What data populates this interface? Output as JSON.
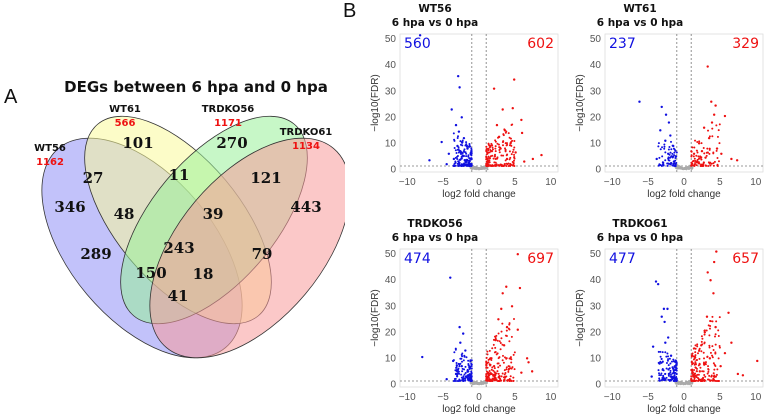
{
  "panel_labels": {
    "a": "A",
    "b": "B"
  },
  "colors": {
    "down": "#1010e0",
    "up": "#ee1111",
    "ns": "#aaaaaa",
    "set_count": "#ee1111"
  },
  "chart_data": [
    {
      "type": "venn",
      "title": "DEGs between 6 hpa and 0 hpa",
      "sets": [
        {
          "name": "WT56",
          "total": "1162",
          "color": "#8f8ff5"
        },
        {
          "name": "WT61",
          "total": "566",
          "color": "#fafa9a"
        },
        {
          "name": "TRDKO56",
          "total": "1171",
          "color": "#99f099"
        },
        {
          "name": "TRDKO61",
          "total": "1134",
          "color": "#f79a9a"
        }
      ],
      "regions": [
        {
          "sets": [
            "WT56"
          ],
          "value": "346"
        },
        {
          "sets": [
            "WT61"
          ],
          "value": "101"
        },
        {
          "sets": [
            "TRDKO56"
          ],
          "value": "270"
        },
        {
          "sets": [
            "TRDKO61"
          ],
          "value": "443"
        },
        {
          "sets": [
            "WT56",
            "WT61"
          ],
          "value": "27"
        },
        {
          "sets": [
            "WT61",
            "TRDKO56"
          ],
          "value": "11"
        },
        {
          "sets": [
            "TRDKO56",
            "TRDKO61"
          ],
          "value": "121"
        },
        {
          "sets": [
            "WT56",
            "WT61",
            "TRDKO56"
          ],
          "value": "48"
        },
        {
          "sets": [
            "WT61",
            "TRDKO56",
            "TRDKO61"
          ],
          "value": "39"
        },
        {
          "sets": [
            "WT56",
            "TRDKO56"
          ],
          "value": "289"
        },
        {
          "sets": [
            "WT61",
            "TRDKO61"
          ],
          "value": "79"
        },
        {
          "sets": [
            "WT56",
            "WT61",
            "TRDKO56",
            "TRDKO61"
          ],
          "value": "243"
        },
        {
          "sets": [
            "WT56",
            "TRDKO56",
            "TRDKO61"
          ],
          "value": "150"
        },
        {
          "sets": [
            "WT56",
            "WT61",
            "TRDKO61"
          ],
          "value": "18"
        },
        {
          "sets": [
            "WT56",
            "TRDKO61"
          ],
          "value": "41"
        }
      ]
    },
    {
      "type": "scatter",
      "title": "WT56",
      "subtitle": "6 hpa vs 0 hpa",
      "xlabel": "log2 fold change",
      "ylabel": "-log10(FDR)",
      "xlim": [
        -11,
        11
      ],
      "ylim": [
        -1,
        52
      ],
      "xticks": [
        "-10",
        "-5",
        "0",
        "5",
        "10"
      ],
      "yticks": [
        "0",
        "10",
        "20",
        "30",
        "40",
        "50"
      ],
      "down_count": "560",
      "up_count": "602",
      "fc_threshold": 1,
      "fdr_threshold": 1.3,
      "down_points": [
        [
          -8.2,
          51.5
        ],
        [
          -2.9,
          35.8
        ],
        [
          -2.7,
          31.5
        ],
        [
          -3.8,
          23
        ],
        [
          -2.4,
          20
        ],
        [
          -3.2,
          17
        ],
        [
          -2.8,
          14.5
        ],
        [
          -5.2,
          10.5
        ],
        [
          -6.9,
          3.5
        ],
        [
          -4.2,
          6
        ],
        [
          -3,
          9
        ],
        [
          -2.1,
          12
        ],
        [
          -1.6,
          8
        ],
        [
          -2.3,
          5
        ],
        [
          -1.8,
          3
        ],
        [
          -1.4,
          2.5
        ],
        [
          -3.5,
          4
        ],
        [
          -2.6,
          7
        ],
        [
          -4.5,
          2
        ]
      ],
      "up_points": [
        [
          4.9,
          34.5
        ],
        [
          2.1,
          31
        ],
        [
          4.7,
          23.5
        ],
        [
          3.3,
          23
        ],
        [
          5.9,
          19
        ],
        [
          2.5,
          17
        ],
        [
          3.6,
          15
        ],
        [
          2.8,
          12.5
        ],
        [
          6,
          14
        ],
        [
          4.4,
          10
        ],
        [
          3,
          8
        ],
        [
          7.5,
          4
        ],
        [
          8.7,
          5.5
        ],
        [
          6.3,
          3
        ],
        [
          5.1,
          6.5
        ],
        [
          1.6,
          9
        ],
        [
          2.2,
          5
        ],
        [
          1.3,
          3
        ],
        [
          3.9,
          4
        ],
        [
          1.8,
          7
        ]
      ],
      "density": {
        "down": 560,
        "up": 602
      }
    },
    {
      "type": "scatter",
      "title": "WT61",
      "subtitle": "6 hpa vs 0 hpa",
      "xlabel": "log2 fold change",
      "ylabel": "-log10(FDR)",
      "xlim": [
        -11,
        11
      ],
      "ylim": [
        -1,
        52
      ],
      "xticks": [
        "-10",
        "-5",
        "0",
        "5",
        "10"
      ],
      "yticks": [
        "0",
        "10",
        "20",
        "30",
        "40",
        "50"
      ],
      "down_count": "237",
      "up_count": "329",
      "fc_threshold": 1,
      "fdr_threshold": 1.3,
      "down_points": [
        [
          -6.2,
          26
        ],
        [
          -3.1,
          24
        ],
        [
          -2.5,
          21
        ],
        [
          -2.1,
          18
        ],
        [
          -3.3,
          15
        ],
        [
          -1.9,
          13
        ],
        [
          -2.6,
          11
        ],
        [
          -1.5,
          9
        ],
        [
          -3.8,
          4
        ],
        [
          -2.2,
          6
        ],
        [
          -1.4,
          3
        ],
        [
          -2.9,
          2
        ],
        [
          -1.7,
          5
        ]
      ],
      "up_points": [
        [
          3.3,
          39.5
        ],
        [
          3.8,
          26
        ],
        [
          4.4,
          24.5
        ],
        [
          4.2,
          21
        ],
        [
          5.7,
          20.5
        ],
        [
          3.9,
          18
        ],
        [
          2.8,
          16
        ],
        [
          3.5,
          12
        ],
        [
          2.1,
          10
        ],
        [
          4.6,
          8
        ],
        [
          5.2,
          6
        ],
        [
          6.6,
          4
        ],
        [
          7.4,
          3.5
        ],
        [
          1.4,
          6
        ],
        [
          1.8,
          3
        ],
        [
          3,
          4.5
        ],
        [
          2.5,
          7
        ]
      ],
      "density": {
        "down": 237,
        "up": 329
      }
    },
    {
      "type": "scatter",
      "title": "TRDKO56",
      "subtitle": "6 hpa vs 0 hpa",
      "xlabel": "log2 fold change",
      "ylabel": "-log10(FDR)",
      "xlim": [
        -11,
        11
      ],
      "ylim": [
        -1,
        52
      ],
      "xticks": [
        "-10",
        "-5",
        "0",
        "5",
        "10"
      ],
      "yticks": [
        "0",
        "10",
        "20",
        "30",
        "40",
        "50"
      ],
      "down_count": "474",
      "up_count": "697",
      "fc_threshold": 1,
      "fdr_threshold": 1.3,
      "down_points": [
        [
          -4,
          41
        ],
        [
          -2.7,
          22
        ],
        [
          -2.2,
          19.5
        ],
        [
          -2.6,
          16
        ],
        [
          -1.9,
          13
        ],
        [
          -7.9,
          10.5
        ],
        [
          -3.6,
          9
        ],
        [
          -2.4,
          7
        ],
        [
          -1.5,
          5
        ],
        [
          -3.2,
          4
        ],
        [
          -1.8,
          3
        ],
        [
          -4.5,
          2
        ],
        [
          -1.3,
          6
        ]
      ],
      "up_points": [
        [
          5.4,
          50
        ],
        [
          5.7,
          37
        ],
        [
          3.8,
          37.5
        ],
        [
          3.3,
          35
        ],
        [
          4.6,
          30
        ],
        [
          3.1,
          29
        ],
        [
          2.7,
          25
        ],
        [
          3.9,
          22
        ],
        [
          5.4,
          21
        ],
        [
          2.3,
          17
        ],
        [
          3.5,
          15
        ],
        [
          6.7,
          10
        ],
        [
          6.9,
          8.5
        ],
        [
          7.4,
          5
        ],
        [
          1.6,
          10
        ],
        [
          2.1,
          7
        ],
        [
          1.3,
          4
        ],
        [
          4.2,
          6
        ],
        [
          2.8,
          3
        ],
        [
          5.9,
          4.5
        ]
      ],
      "density": {
        "down": 474,
        "up": 697
      }
    },
    {
      "type": "scatter",
      "title": "TRDKO61",
      "subtitle": "6 hpa vs 0 hpa",
      "xlabel": "log2 fold change",
      "ylabel": "-log10(FDR)",
      "xlim": [
        -11,
        11
      ],
      "ylim": [
        -1,
        52
      ],
      "xticks": [
        "-10",
        "-5",
        "0",
        "5",
        "10"
      ],
      "yticks": [
        "0",
        "10",
        "20",
        "30",
        "40",
        "50"
      ],
      "down_count": "477",
      "up_count": "657",
      "fc_threshold": 1,
      "fdr_threshold": 1.3,
      "down_points": [
        [
          -3.9,
          39.5
        ],
        [
          -3.6,
          38.5
        ],
        [
          -2.8,
          29
        ],
        [
          -2.3,
          29
        ],
        [
          -3.1,
          26
        ],
        [
          -2.7,
          24
        ],
        [
          -2.2,
          18
        ],
        [
          -2.6,
          16
        ],
        [
          -4.3,
          14.5
        ],
        [
          -1.8,
          11
        ],
        [
          -3.4,
          8
        ],
        [
          -1.5,
          6
        ],
        [
          -4.5,
          3
        ],
        [
          -2.1,
          4
        ],
        [
          -1.3,
          2.5
        ]
      ],
      "up_points": [
        [
          4.5,
          51
        ],
        [
          4.2,
          47
        ],
        [
          3.3,
          43
        ],
        [
          3.7,
          40
        ],
        [
          4.1,
          35
        ],
        [
          6.2,
          27.5
        ],
        [
          3.2,
          26
        ],
        [
          4.4,
          22
        ],
        [
          2.9,
          20
        ],
        [
          6.6,
          16
        ],
        [
          2.4,
          15
        ],
        [
          5.7,
          12
        ],
        [
          10.2,
          9
        ],
        [
          7.5,
          4
        ],
        [
          8.2,
          3.5
        ],
        [
          5.1,
          7
        ],
        [
          1.6,
          8
        ],
        [
          2.2,
          5
        ],
        [
          1.3,
          3
        ],
        [
          3.6,
          10
        ]
      ],
      "density": {
        "down": 477,
        "up": 657
      }
    }
  ]
}
